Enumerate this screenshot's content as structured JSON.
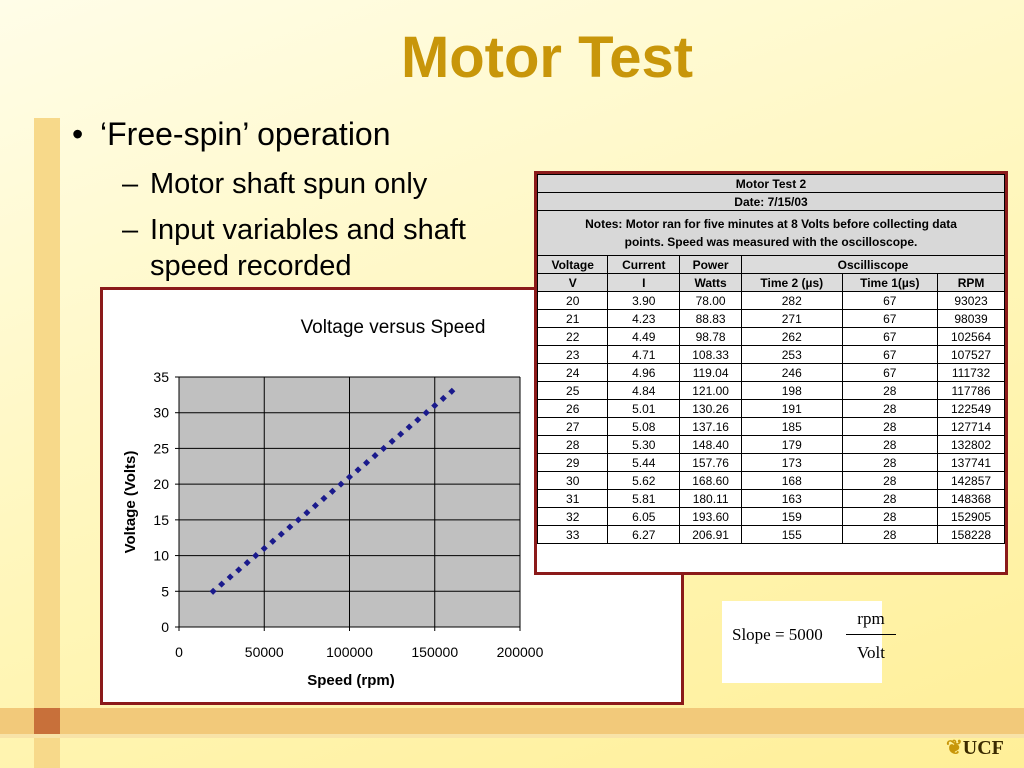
{
  "slide": {
    "title": "Motor Test",
    "bullet": "‘Free-spin’ operation",
    "subbullets": [
      "Motor shaft spun only",
      "Input variables and shaft",
      "speed recorded"
    ],
    "logo_text": "UCF"
  },
  "table": {
    "title": "Motor Test 2",
    "date": "Date:  7/15/03",
    "notes_line1": "Notes:  Motor ran for five minutes at 8 Volts before collecting data",
    "notes_line2": "points.  Speed was measured with the oscilloscope.",
    "header1": [
      "Voltage",
      "Current",
      "Power",
      "Oscilliscope"
    ],
    "header2": [
      "V",
      "I",
      "Watts",
      "Time 2 (µs)",
      "Time 1(µs)",
      "RPM"
    ],
    "rows": [
      [
        "20",
        "3.90",
        "78.00",
        "282",
        "67",
        "93023"
      ],
      [
        "21",
        "4.23",
        "88.83",
        "271",
        "67",
        "98039"
      ],
      [
        "22",
        "4.49",
        "98.78",
        "262",
        "67",
        "102564"
      ],
      [
        "23",
        "4.71",
        "108.33",
        "253",
        "67",
        "107527"
      ],
      [
        "24",
        "4.96",
        "119.04",
        "246",
        "67",
        "111732"
      ],
      [
        "25",
        "4.84",
        "121.00",
        "198",
        "28",
        "117786"
      ],
      [
        "26",
        "5.01",
        "130.26",
        "191",
        "28",
        "122549"
      ],
      [
        "27",
        "5.08",
        "137.16",
        "185",
        "28",
        "127714"
      ],
      [
        "28",
        "5.30",
        "148.40",
        "179",
        "28",
        "132802"
      ],
      [
        "29",
        "5.44",
        "157.76",
        "173",
        "28",
        "137741"
      ],
      [
        "30",
        "5.62",
        "168.60",
        "168",
        "28",
        "142857"
      ],
      [
        "31",
        "5.81",
        "180.11",
        "163",
        "28",
        "148368"
      ],
      [
        "32",
        "6.05",
        "193.60",
        "159",
        "28",
        "152905"
      ],
      [
        "33",
        "6.27",
        "206.91",
        "155",
        "28",
        "158228"
      ]
    ]
  },
  "slope": {
    "label": "Slope = 5000",
    "numerator": "rpm",
    "denominator": "Volt"
  },
  "chart_data": {
    "type": "scatter",
    "title": "Voltage versus Speed",
    "xlabel": "Speed (rpm)",
    "ylabel": "Voltage (Volts)",
    "xlim": [
      0,
      200000
    ],
    "ylim": [
      0,
      35
    ],
    "xticks": [
      "0",
      "50000",
      "100000",
      "150000",
      "200000"
    ],
    "yticks": [
      "0",
      "5",
      "10",
      "15",
      "20",
      "25",
      "30",
      "35"
    ],
    "grid": true,
    "point_color": "#1a1a8c",
    "x": [
      20000,
      25000,
      30000,
      35000,
      40000,
      45000,
      50000,
      55000,
      60000,
      65000,
      70000,
      75000,
      80000,
      85000,
      90000,
      95000,
      100000,
      105000,
      110000,
      115000,
      120000,
      125000,
      130000,
      135000,
      140000,
      145000,
      150000,
      155000,
      160000
    ],
    "y": [
      5,
      6,
      7,
      8,
      9,
      10,
      11,
      12,
      13,
      14,
      15,
      16,
      17,
      18,
      19,
      20,
      21,
      22,
      23,
      24,
      25,
      26,
      27,
      28,
      29,
      30,
      31,
      32,
      33
    ]
  }
}
